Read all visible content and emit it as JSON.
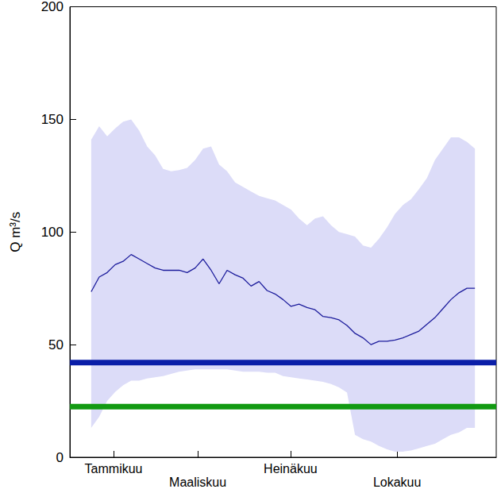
{
  "chart_data": {
    "type": "line",
    "y_label": "Q m³/s",
    "xlim": [
      0,
      400
    ],
    "xticks": [
      {
        "value": 41,
        "label": "Tammikuu"
      },
      {
        "value": 120,
        "label": "Maaliskuu"
      },
      {
        "value": 207,
        "label": "Heinäkuu"
      },
      {
        "value": 307,
        "label": "Lokakuu"
      }
    ],
    "ylim": [
      0,
      200
    ],
    "yticks": [
      0,
      50,
      100,
      150,
      200
    ],
    "grid": false,
    "x": [
      20,
      27.5,
      35,
      42.5,
      50,
      57.5,
      65,
      72.5,
      80,
      87.5,
      95,
      102.5,
      110,
      117.5,
      125,
      132.5,
      140,
      147.5,
      155,
      162.5,
      170,
      177.5,
      185,
      192.5,
      200,
      207.5,
      215,
      222.5,
      230,
      237.5,
      245,
      252.5,
      260,
      267.5,
      275,
      282.5,
      290,
      297.5,
      305,
      312.5,
      320,
      327.5,
      335,
      342.5,
      350,
      357.5,
      365,
      372.5,
      380
    ],
    "band": {
      "color": "#dcdcf8",
      "upper": [
        141,
        147,
        142.5,
        146,
        149,
        150,
        145,
        138,
        134,
        128,
        127,
        127.5,
        128.5,
        132,
        137,
        138,
        130,
        127,
        122,
        120,
        118,
        116,
        115,
        114,
        112,
        110,
        106,
        103,
        106,
        107,
        103,
        100,
        99,
        98,
        94,
        93,
        97,
        102,
        108,
        112,
        114.5,
        119,
        124,
        132,
        137,
        142,
        142,
        140,
        137
      ],
      "lower": [
        13,
        18,
        25,
        29,
        32,
        34,
        34,
        35,
        35.5,
        36,
        37,
        38,
        38.5,
        39,
        39,
        39,
        39,
        39,
        38.5,
        38,
        38,
        38,
        37.5,
        37.5,
        36,
        35.5,
        35,
        34.5,
        34,
        33.5,
        32.5,
        31,
        28.7,
        10,
        8,
        7,
        5,
        3.5,
        2.5,
        2.5,
        3,
        4,
        5,
        6,
        8,
        10,
        11,
        13,
        13
      ]
    },
    "series": [
      {
        "color": "#1c1c9c",
        "line_style": "solid",
        "values": [
          73.5,
          80,
          82,
          85.5,
          87,
          90,
          88,
          86,
          84,
          83,
          83,
          83,
          82,
          84,
          88,
          83,
          77,
          83,
          81,
          79.5,
          76,
          78,
          74,
          72.5,
          70,
          67,
          68,
          66.5,
          65.5,
          62.5,
          62,
          61,
          58.5,
          55,
          53,
          50,
          51.5,
          51.5,
          52,
          53,
          54.5,
          56,
          59,
          62,
          66,
          70,
          73,
          75,
          75
        ]
      }
    ],
    "reference_lines": [
      {
        "value": 42,
        "color": "#0a1ea8"
      },
      {
        "value": 22.5,
        "color": "#129a12"
      }
    ]
  }
}
